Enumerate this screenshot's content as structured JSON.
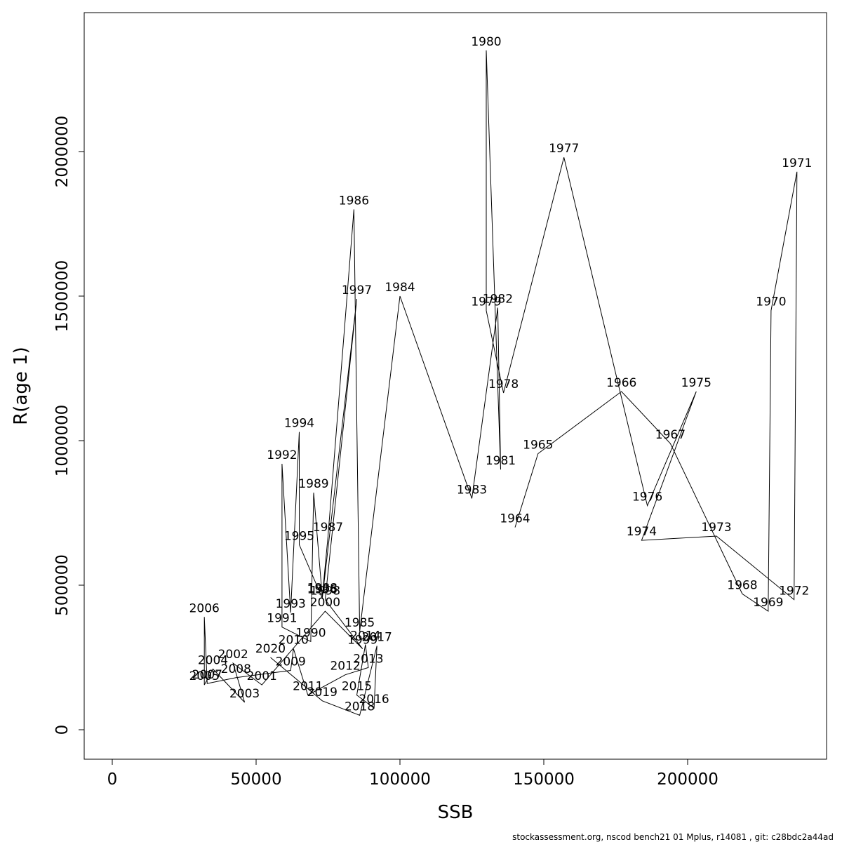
{
  "figure": {
    "footer": "stockassessment.org, nscod bench21 01 Mplus, r14081 , git: c28bdc2a44ad",
    "label_color": "#ff0000",
    "line_color": "#000000",
    "background": "#ffffff"
  },
  "chart_data": {
    "type": "line",
    "title": "",
    "xlabel": "SSB",
    "ylabel": "R(age 1)",
    "xlim": [
      0,
      248000
    ],
    "ylim": [
      0,
      2450000
    ],
    "x_ticks": [
      0,
      50000,
      100000,
      150000,
      200000
    ],
    "y_ticks": [
      0,
      500000,
      1000000,
      1500000,
      2000000
    ],
    "grid": false,
    "legend": "none",
    "point_labels": "year",
    "points": [
      {
        "year": 1964,
        "ssb": 140000,
        "r": 700000
      },
      {
        "year": 1965,
        "ssb": 148000,
        "r": 955000
      },
      {
        "year": 1966,
        "ssb": 177000,
        "r": 1170000
      },
      {
        "year": 1967,
        "ssb": 194000,
        "r": 990000
      },
      {
        "year": 1968,
        "ssb": 219000,
        "r": 470000
      },
      {
        "year": 1969,
        "ssb": 228000,
        "r": 410000
      },
      {
        "year": 1970,
        "ssb": 229000,
        "r": 1450000
      },
      {
        "year": 1971,
        "ssb": 238000,
        "r": 1930000
      },
      {
        "year": 1972,
        "ssb": 237000,
        "r": 450000
      },
      {
        "year": 1973,
        "ssb": 210000,
        "r": 670000
      },
      {
        "year": 1974,
        "ssb": 184000,
        "r": 655000
      },
      {
        "year": 1975,
        "ssb": 203000,
        "r": 1170000
      },
      {
        "year": 1976,
        "ssb": 186000,
        "r": 775000
      },
      {
        "year": 1977,
        "ssb": 157000,
        "r": 1980000
      },
      {
        "year": 1978,
        "ssb": 136000,
        "r": 1165000
      },
      {
        "year": 1979,
        "ssb": 130000,
        "r": 1450000
      },
      {
        "year": 1980,
        "ssb": 130000,
        "r": 2350000
      },
      {
        "year": 1981,
        "ssb": 135000,
        "r": 900000
      },
      {
        "year": 1982,
        "ssb": 134000,
        "r": 1460000
      },
      {
        "year": 1983,
        "ssb": 125000,
        "r": 800000
      },
      {
        "year": 1984,
        "ssb": 100000,
        "r": 1500000
      },
      {
        "year": 1985,
        "ssb": 86000,
        "r": 340000
      },
      {
        "year": 1986,
        "ssb": 84000,
        "r": 1800000
      },
      {
        "year": 1987,
        "ssb": 75000,
        "r": 670000
      },
      {
        "year": 1988,
        "ssb": 73000,
        "r": 460000
      },
      {
        "year": 1989,
        "ssb": 70000,
        "r": 820000
      },
      {
        "year": 1990,
        "ssb": 69000,
        "r": 305000
      },
      {
        "year": 1991,
        "ssb": 59000,
        "r": 355000
      },
      {
        "year": 1992,
        "ssb": 59000,
        "r": 920000
      },
      {
        "year": 1993,
        "ssb": 62000,
        "r": 405000
      },
      {
        "year": 1994,
        "ssb": 65000,
        "r": 1030000
      },
      {
        "year": 1995,
        "ssb": 65000,
        "r": 640000
      },
      {
        "year": 1996,
        "ssb": 73000,
        "r": 455000
      },
      {
        "year": 1997,
        "ssb": 85000,
        "r": 1490000
      },
      {
        "year": 1998,
        "ssb": 74000,
        "r": 450000
      },
      {
        "year": 1999,
        "ssb": 87000,
        "r": 280000
      },
      {
        "year": 2000,
        "ssb": 74000,
        "r": 410000
      },
      {
        "year": 2001,
        "ssb": 52000,
        "r": 155000
      },
      {
        "year": 2002,
        "ssb": 42000,
        "r": 230000
      },
      {
        "year": 2003,
        "ssb": 46000,
        "r": 95000
      },
      {
        "year": 2004,
        "ssb": 35000,
        "r": 210000
      },
      {
        "year": 2005,
        "ssb": 32000,
        "r": 155000
      },
      {
        "year": 2006,
        "ssb": 32000,
        "r": 390000
      },
      {
        "year": 2007,
        "ssb": 33000,
        "r": 160000
      },
      {
        "year": 2008,
        "ssb": 43000,
        "r": 180000
      },
      {
        "year": 2009,
        "ssb": 62000,
        "r": 205000
      },
      {
        "year": 2010,
        "ssb": 63000,
        "r": 280000
      },
      {
        "year": 2011,
        "ssb": 68000,
        "r": 120000
      },
      {
        "year": 2012,
        "ssb": 81000,
        "r": 190000
      },
      {
        "year": 2013,
        "ssb": 89000,
        "r": 215000
      },
      {
        "year": 2014,
        "ssb": 88000,
        "r": 295000
      },
      {
        "year": 2015,
        "ssb": 85000,
        "r": 120000
      },
      {
        "year": 2016,
        "ssb": 91000,
        "r": 75000
      },
      {
        "year": 2017,
        "ssb": 92000,
        "r": 290000
      },
      {
        "year": 2018,
        "ssb": 86000,
        "r": 50000
      },
      {
        "year": 2019,
        "ssb": 73000,
        "r": 100000
      },
      {
        "year": 2020,
        "ssb": 55000,
        "r": 250000
      }
    ]
  }
}
